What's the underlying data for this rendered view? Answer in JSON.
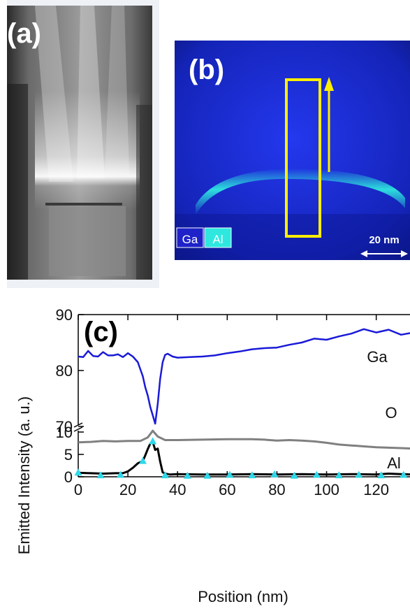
{
  "panels": {
    "a": {
      "letter": "(a)"
    },
    "b": {
      "letter": "(b)",
      "legend": [
        "Ga",
        "Al"
      ],
      "scale_bar": "20 nm",
      "colors": {
        "ga": "#1a36e0",
        "al": "#2ee8e0",
        "roi": "#ffee00"
      }
    },
    "c": {
      "letter": "(c)"
    }
  },
  "chart_data": {
    "type": "line",
    "xlabel": "Position (nm)",
    "ylabel": "Emitted Intensity (a. u.)",
    "xlim": [
      0,
      135
    ],
    "x_ticks": [
      0,
      20,
      40,
      60,
      80,
      100,
      120
    ],
    "y_axis_break": true,
    "upper_segment": {
      "ylim": [
        70,
        90
      ],
      "ticks": [
        70,
        80,
        90
      ]
    },
    "lower_segment": {
      "ylim": [
        0,
        11.5
      ],
      "ticks": [
        0,
        5,
        10
      ]
    },
    "series": [
      {
        "name": "Ga",
        "segment": "upper",
        "color": "#1a1ad8",
        "x": [
          0,
          2,
          4,
          6,
          8,
          10,
          12,
          14,
          16,
          18,
          20,
          22,
          24,
          26,
          27,
          28,
          29,
          30,
          31,
          32,
          33,
          34,
          35,
          36,
          38,
          40,
          45,
          50,
          55,
          60,
          65,
          70,
          75,
          80,
          85,
          90,
          95,
          100,
          105,
          110,
          115,
          120,
          125,
          130,
          135
        ],
        "y": [
          82.5,
          82.4,
          83.5,
          82.6,
          82.5,
          83.3,
          82.7,
          82.7,
          82.9,
          82.4,
          83.1,
          82.5,
          81.5,
          79.0,
          77.0,
          75.5,
          73.5,
          72.0,
          70.5,
          74.0,
          78.5,
          81.5,
          82.8,
          83.0,
          82.5,
          82.3,
          82.4,
          82.5,
          82.7,
          83.1,
          83.4,
          83.8,
          84.0,
          84.1,
          84.6,
          85.0,
          85.7,
          85.5,
          86.1,
          86.6,
          87.4,
          86.8,
          87.3,
          86.4,
          86.8
        ]
      },
      {
        "name": "O",
        "segment": "lower",
        "color": "#808080",
        "x": [
          0,
          5,
          10,
          15,
          20,
          25,
          28,
          30,
          32,
          35,
          40,
          50,
          60,
          70,
          75,
          80,
          85,
          90,
          95,
          100,
          105,
          110,
          115,
          120,
          125,
          130,
          135
        ],
        "y": [
          7.7,
          7.8,
          8.0,
          7.9,
          8.0,
          8.0,
          8.8,
          10.3,
          9.0,
          8.2,
          8.2,
          8.3,
          8.4,
          8.4,
          8.3,
          8.1,
          8.2,
          8.1,
          7.9,
          7.6,
          7.2,
          7.0,
          6.8,
          6.6,
          6.5,
          6.4,
          6.3
        ]
      },
      {
        "name": "Al",
        "segment": "lower",
        "color": "#000000",
        "x": [
          0,
          5,
          10,
          15,
          18,
          20,
          22,
          24,
          26,
          27,
          28,
          29,
          30,
          31,
          32,
          33,
          34,
          35,
          37,
          40,
          50,
          60,
          70,
          80,
          90,
          100,
          110,
          120,
          125,
          130,
          135
        ],
        "y": [
          0.9,
          0.8,
          0.7,
          0.8,
          0.8,
          1.2,
          2.0,
          3.0,
          3.5,
          4.8,
          6.2,
          7.4,
          7.8,
          6.0,
          6.3,
          3.4,
          1.0,
          0.7,
          0.5,
          0.6,
          0.5,
          0.5,
          0.6,
          0.5,
          0.6,
          0.5,
          0.6,
          0.5,
          0.7,
          0.6,
          0.5
        ]
      }
    ],
    "markers": {
      "color": "#2ed8e8",
      "x": [
        0,
        9,
        17,
        26,
        30,
        35,
        44,
        52,
        61,
        70,
        79,
        87,
        96,
        105,
        113,
        122,
        131
      ],
      "y": [
        0.9,
        0.3,
        0.4,
        3.5,
        7.9,
        0.3,
        0.2,
        0.2,
        0.4,
        0.3,
        0.5,
        0.2,
        0.4,
        0.3,
        0.4,
        0.3,
        0.4
      ]
    }
  }
}
